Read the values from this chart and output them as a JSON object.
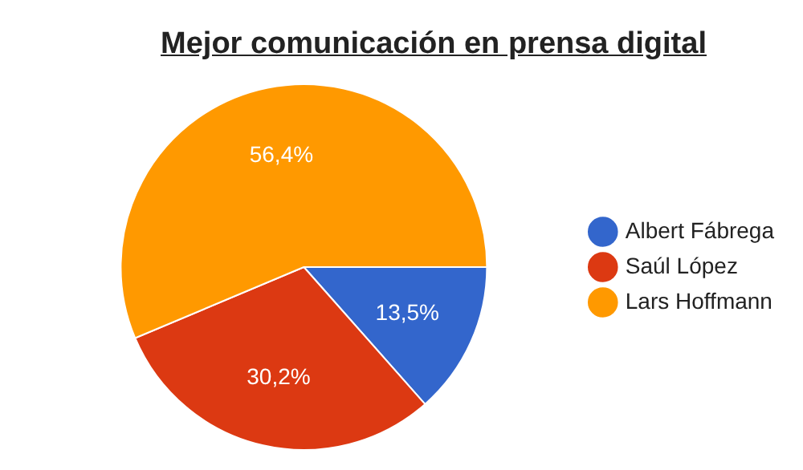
{
  "chart_data": {
    "type": "pie",
    "title": "Mejor comunicación en prensa digital",
    "categories": [
      "Albert Fábrega",
      "Saúl López",
      "Lars Hoffmann"
    ],
    "values": [
      13.5,
      30.2,
      56.4
    ],
    "colors": [
      "#3366cc",
      "#dc3912",
      "#ff9900"
    ],
    "value_labels": [
      "13,5%",
      "30,2%",
      "56,4%"
    ],
    "legend": "right"
  }
}
